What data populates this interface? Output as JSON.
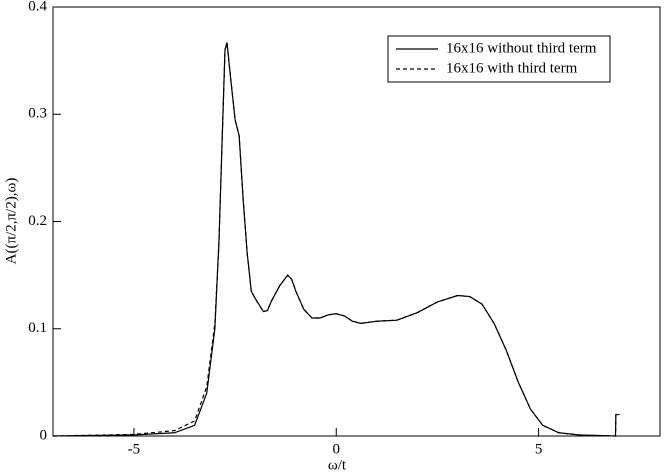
{
  "chart_data": {
    "type": "line",
    "xlabel": "ω/t",
    "ylabel": "A((π/2,π/2),ω)",
    "xlim": [
      -7,
      8
    ],
    "ylim": [
      0,
      0.4
    ],
    "xticks": [
      -5,
      0,
      5
    ],
    "yticks": [
      0,
      0.1,
      0.2,
      0.3,
      0.4
    ],
    "legend": "upper right",
    "x": [
      -7,
      -6,
      -5,
      -4,
      -3.5,
      -3.2,
      -3,
      -2.9,
      -2.8,
      -2.75,
      -2.7,
      -2.6,
      -2.5,
      -2.4,
      -2.3,
      -2.2,
      -2.1,
      -2.0,
      -1.8,
      -1.7,
      -1.6,
      -1.4,
      -1.2,
      -1.1,
      -1.0,
      -0.8,
      -0.6,
      -0.4,
      -0.2,
      0,
      0.2,
      0.4,
      0.6,
      0.8,
      1.0,
      1.5,
      2.0,
      2.5,
      3.0,
      3.3,
      3.6,
      3.9,
      4.2,
      4.5,
      4.8,
      5.1,
      5.5,
      6,
      6.9,
      6.91,
      7.0
    ],
    "series": [
      {
        "name": "16x16 without third term",
        "color": "#000000",
        "line_style": "solid",
        "values": [
          0,
          0.0005,
          0.001,
          0.003,
          0.01,
          0.04,
          0.1,
          0.18,
          0.3,
          0.36,
          0.367,
          0.33,
          0.295,
          0.28,
          0.22,
          0.17,
          0.135,
          0.128,
          0.116,
          0.117,
          0.126,
          0.14,
          0.15,
          0.146,
          0.135,
          0.118,
          0.11,
          0.11,
          0.113,
          0.114,
          0.112,
          0.107,
          0.105,
          0.106,
          0.107,
          0.108,
          0.115,
          0.125,
          0.131,
          0.13,
          0.123,
          0.105,
          0.08,
          0.05,
          0.025,
          0.01,
          0.003,
          0.001,
          0,
          0.02,
          0.02
        ]
      },
      {
        "name": "16x16 with third term",
        "color": "#000000",
        "line_style": "dashed",
        "values": [
          0,
          0.0007,
          0.0015,
          0.005,
          0.014,
          0.046,
          0.105,
          0.18,
          0.3,
          0.36,
          0.366,
          0.33,
          0.295,
          0.28,
          0.22,
          0.17,
          0.135,
          0.128,
          0.116,
          0.117,
          0.126,
          0.14,
          0.15,
          0.146,
          0.135,
          0.118,
          0.11,
          0.11,
          0.113,
          0.114,
          0.112,
          0.107,
          0.105,
          0.106,
          0.107,
          0.108,
          0.115,
          0.125,
          0.131,
          0.13,
          0.123,
          0.105,
          0.08,
          0.05,
          0.025,
          0.01,
          0.003,
          0.001,
          0,
          0.02,
          0.02
        ]
      }
    ]
  }
}
